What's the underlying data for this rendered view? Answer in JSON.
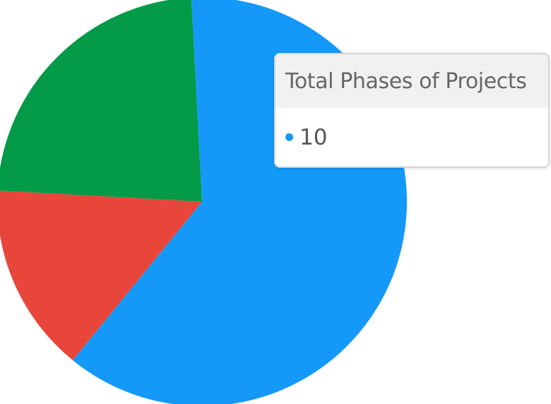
{
  "chart_data": {
    "type": "pie",
    "slices": [
      {
        "label": "",
        "value": 61.7,
        "color": "#1499f9"
      },
      {
        "label": "",
        "value": 15.0,
        "color": "#e8463b"
      },
      {
        "label": "",
        "value": 23.3,
        "color": "#039a48"
      }
    ],
    "start_angle_deg": -3
  },
  "tooltip": {
    "title": "Total Phases of Projects",
    "marker_color": "#1499f9",
    "value": "10"
  }
}
